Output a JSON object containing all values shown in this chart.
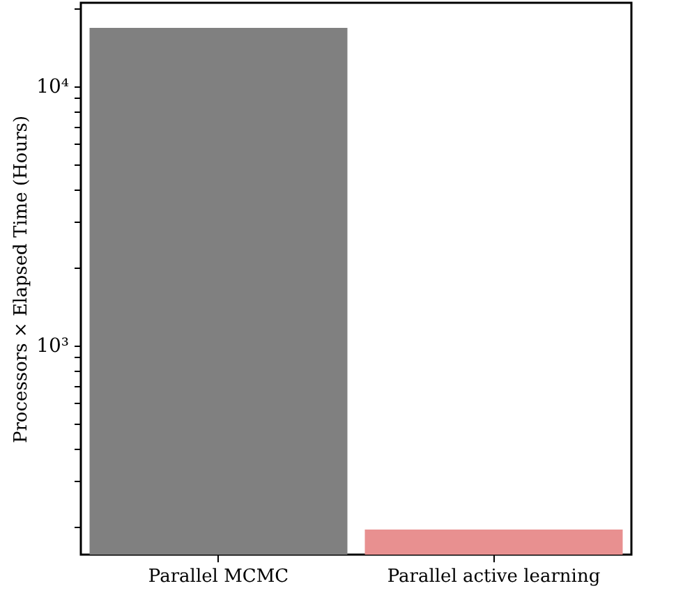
{
  "chart_data": {
    "type": "bar",
    "ylabel": "Processors × Elapsed Time (Hours)",
    "categories": [
      "Parallel MCMC",
      "Parallel active learning"
    ],
    "values": [
      16800,
      195
    ],
    "colors": [
      "#808080",
      "#e89090"
    ],
    "log": true,
    "ylim": [
      156,
      21000
    ],
    "yticks": [
      {
        "value": 200,
        "label": null
      },
      {
        "value": 300,
        "label": null
      },
      {
        "value": 400,
        "label": null
      },
      {
        "value": 500,
        "label": null
      },
      {
        "value": 600,
        "label": null
      },
      {
        "value": 700,
        "label": null
      },
      {
        "value": 800,
        "label": null
      },
      {
        "value": 900,
        "label": null
      },
      {
        "value": 1000,
        "label": "10³"
      },
      {
        "value": 2000,
        "label": null
      },
      {
        "value": 3000,
        "label": null
      },
      {
        "value": 4000,
        "label": null
      },
      {
        "value": 5000,
        "label": null
      },
      {
        "value": 6000,
        "label": null
      },
      {
        "value": 7000,
        "label": null
      },
      {
        "value": 8000,
        "label": null
      },
      {
        "value": 9000,
        "label": null
      },
      {
        "value": 10000,
        "label": "10⁴"
      },
      {
        "value": 20000,
        "label": null
      }
    ],
    "grid": false
  }
}
